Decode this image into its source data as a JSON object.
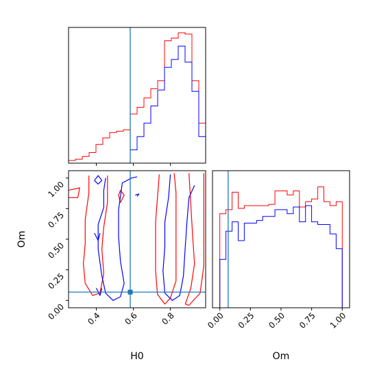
{
  "chart_data": [
    {
      "panel": "H0 marginal",
      "type": "histogram",
      "x_range": [
        0.25,
        0.99
      ],
      "bin_edges": [
        0.25,
        0.287,
        0.324,
        0.361,
        0.398,
        0.435,
        0.472,
        0.509,
        0.546,
        0.583,
        0.62,
        0.657,
        0.694,
        0.731,
        0.768,
        0.805,
        0.842,
        0.879,
        0.916,
        0.953,
        0.99
      ],
      "series": [
        {
          "color": "#ff0000",
          "values": [
            0.02,
            0.03,
            0.05,
            0.08,
            0.14,
            0.19,
            0.23,
            0.24,
            0.25,
            0.37,
            0.42,
            0.49,
            0.56,
            0.62,
            0.92,
            0.94,
            0.98,
            0.97,
            0.62,
            0.3
          ]
        },
        {
          "color": "#0000ff",
          "values": [
            0,
            0,
            0,
            0,
            0,
            0,
            0,
            0,
            0,
            0.1,
            0.2,
            0.3,
            0.43,
            0.55,
            0.72,
            0.78,
            0.88,
            0.76,
            0.54,
            0.2
          ]
        }
      ],
      "truth_line": {
        "value": 0.583,
        "color": "#1f77b4"
      },
      "ticks": [
        0.4,
        0.6,
        0.8
      ]
    },
    {
      "panel": "H0 vs Om",
      "type": "contour",
      "xlabel": "H0",
      "ylabel": "Om",
      "xlim": [
        0.25,
        0.99
      ],
      "ylim": [
        -0.06,
        1.06
      ],
      "x_tick_labels": [
        "0.4",
        "0.6",
        "0.8"
      ],
      "x_ticks": [
        0.4,
        0.6,
        0.8
      ],
      "y_tick_labels": [
        "0.00",
        "0.25",
        "0.50",
        "0.75",
        "1.00"
      ],
      "y_ticks": [
        0,
        0.25,
        0.5,
        0.75,
        1.0
      ],
      "truth_point": {
        "x": 0.583,
        "y": 0.068,
        "color": "#1f77b4"
      },
      "contours": [
        {
          "color": "#ff0000",
          "points": [
            [
              0.36,
              1.02
            ],
            [
              0.36,
              0.88
            ],
            [
              0.34,
              0.66
            ],
            [
              0.34,
              0.46
            ],
            [
              0.33,
              0.3
            ],
            [
              0.34,
              0.14
            ],
            [
              0.38,
              0.04
            ],
            [
              0.42,
              0.06
            ],
            [
              0.44,
              0.22
            ],
            [
              0.43,
              0.42
            ],
            [
              0.44,
              0.6
            ],
            [
              0.46,
              0.8
            ],
            [
              0.46,
              1.02
            ]
          ]
        },
        {
          "color": "#ff0000",
          "points": [
            [
              0.74,
              1.03
            ],
            [
              0.73,
              0.84
            ],
            [
              0.72,
              0.64
            ],
            [
              0.72,
              0.44
            ],
            [
              0.72,
              0.24
            ],
            [
              0.73,
              0.05
            ],
            [
              0.77,
              -0.03
            ],
            [
              0.8,
              0.02
            ],
            [
              0.83,
              0.16
            ],
            [
              0.83,
              0.4
            ],
            [
              0.83,
              0.66
            ],
            [
              0.83,
              0.88
            ],
            [
              0.82,
              1.04
            ]
          ]
        },
        {
          "color": "#ff0000",
          "points": [
            [
              0.9,
              1.04
            ],
            [
              0.91,
              0.78
            ],
            [
              0.92,
              0.52
            ],
            [
              0.93,
              0.3
            ],
            [
              0.91,
              0.1
            ],
            [
              0.88,
              -0.03
            ],
            [
              0.9,
              -0.04
            ],
            [
              0.96,
              0.06
            ],
            [
              0.98,
              0.28
            ],
            [
              0.98,
              0.6
            ],
            [
              0.98,
              1.04
            ]
          ]
        },
        {
          "color": "#ff0000",
          "points": [
            [
              0.25,
              0.9
            ],
            [
              0.31,
              0.92
            ],
            [
              0.3,
              0.84
            ],
            [
              0.25,
              0.84
            ]
          ]
        },
        {
          "color": "#ff0000",
          "points": [
            [
              0.52,
              0.86
            ],
            [
              0.53,
              0.8
            ],
            [
              0.55,
              0.86
            ],
            [
              0.53,
              0.9
            ],
            [
              0.52,
              0.86
            ]
          ]
        },
        {
          "color": "#0000ff",
          "points": [
            [
              0.45,
              1.0
            ],
            [
              0.44,
              0.9
            ],
            [
              0.44,
              0.76
            ],
            [
              0.41,
              0.62
            ],
            [
              0.41,
              0.42
            ],
            [
              0.43,
              0.2
            ],
            [
              0.45,
              0.06
            ],
            [
              0.49,
              0.0
            ],
            [
              0.53,
              0.03
            ],
            [
              0.55,
              0.14
            ],
            [
              0.53,
              0.32
            ],
            [
              0.52,
              0.52
            ],
            [
              0.52,
              0.74
            ],
            [
              0.54,
              0.96
            ],
            [
              0.59,
              1.0
            ],
            [
              0.62,
              1.01
            ]
          ]
        },
        {
          "color": "#0000ff",
          "points": [
            [
              0.8,
              1.03
            ],
            [
              0.79,
              0.84
            ],
            [
              0.77,
              0.64
            ],
            [
              0.77,
              0.44
            ],
            [
              0.76,
              0.24
            ],
            [
              0.77,
              0.06
            ],
            [
              0.81,
              0.0
            ],
            [
              0.85,
              0.04
            ],
            [
              0.87,
              0.2
            ],
            [
              0.88,
              0.44
            ],
            [
              0.89,
              0.66
            ],
            [
              0.9,
              0.84
            ],
            [
              0.93,
              0.94
            ]
          ]
        },
        {
          "color": "#0000ff",
          "points": [
            [
              0.39,
              0.98
            ],
            [
              0.41,
              1.02
            ],
            [
              0.43,
              0.98
            ],
            [
              0.41,
              0.95
            ],
            [
              0.39,
              0.98
            ]
          ]
        },
        {
          "color": "#0000ff",
          "points": [
            [
              0.4,
              0.1
            ],
            [
              0.42,
              0.04
            ],
            [
              0.43,
              0.1
            ]
          ]
        },
        {
          "color": "#0000ff",
          "points": [
            [
              0.39,
              0.55
            ],
            [
              0.41,
              0.49
            ],
            [
              0.42,
              0.55
            ]
          ]
        },
        {
          "color": "#0000ff",
          "points": [
            [
              0.61,
              0.86
            ],
            [
              0.63,
              0.87
            ],
            [
              0.62,
              0.85
            ]
          ]
        }
      ]
    },
    {
      "panel": "Om marginal",
      "type": "histogram",
      "xlabel": "Om",
      "x_range": [
        -0.06,
        1.06
      ],
      "x_tick_labels": [
        "0.00",
        "0.25",
        "0.50",
        "0.75",
        "1.00"
      ],
      "x_ticks": [
        0,
        0.25,
        0.5,
        0.75,
        1.0
      ],
      "bin_edges": [
        0.0,
        0.05,
        0.1,
        0.15,
        0.2,
        0.25,
        0.3,
        0.35,
        0.4,
        0.45,
        0.5,
        0.55,
        0.6,
        0.65,
        0.7,
        0.75,
        0.8,
        0.85,
        0.9,
        0.95,
        1.0
      ],
      "series": [
        {
          "color": "#ff0000",
          "values": [
            0.7,
            0.73,
            0.86,
            0.74,
            0.76,
            0.76,
            0.76,
            0.76,
            0.77,
            0.87,
            0.87,
            0.84,
            0.87,
            0.75,
            0.79,
            0.81,
            0.9,
            0.79,
            0.76,
            0.79
          ]
        },
        {
          "color": "#0000ff",
          "values": [
            0.36,
            0.57,
            0.64,
            0.5,
            0.63,
            0.63,
            0.65,
            0.68,
            0.68,
            0.73,
            0.73,
            0.7,
            0.75,
            0.64,
            0.76,
            0.64,
            0.62,
            0.62,
            0.55,
            0.44
          ]
        }
      ],
      "truth_line": {
        "value": 0.068,
        "color": "#1f77b4"
      }
    }
  ]
}
